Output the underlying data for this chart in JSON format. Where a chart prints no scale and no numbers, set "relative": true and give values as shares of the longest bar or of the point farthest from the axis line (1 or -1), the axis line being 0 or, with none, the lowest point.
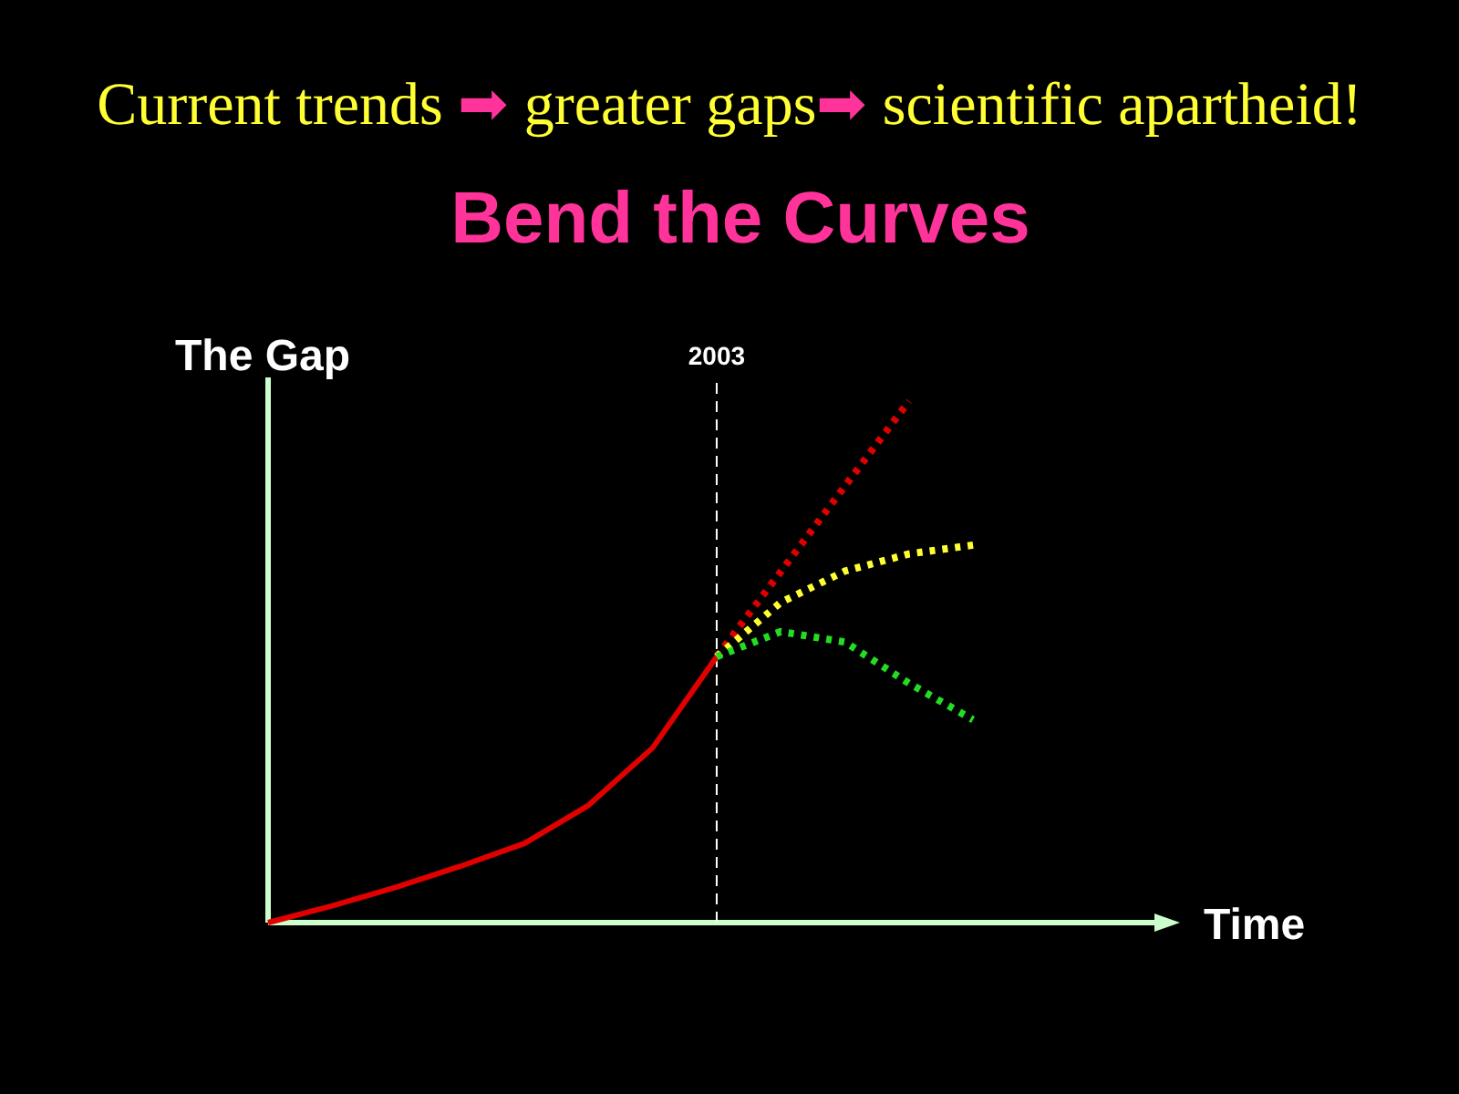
{
  "chart_data": {
    "type": "line",
    "title": "Bend the Curves",
    "subtitle": "Current trends ➡ greater gaps➡ scientific apartheid!",
    "xlabel": "Time",
    "ylabel": "The Gap",
    "relative": true,
    "categories": [
      null,
      null,
      null,
      null,
      null,
      null,
      null,
      null,
      null,
      null,
      null,
      null
    ],
    "series": [
      {
        "color": "#e00000",
        "line_style": "solid",
        "values": [
          0,
          0.032,
          0.068,
          0.108,
          0.152,
          0.225,
          0.335,
          0.51,
          null,
          null,
          null,
          null
        ]
      },
      {
        "color": "#e00000",
        "line_style": "dotted",
        "values": [
          null,
          null,
          null,
          null,
          null,
          null,
          null,
          0.51,
          0.673,
          0.837,
          1,
          null
        ]
      },
      {
        "color": "#ffff33",
        "line_style": "dotted",
        "values": [
          null,
          null,
          null,
          null,
          null,
          null,
          null,
          0.51,
          0.614,
          0.674,
          0.707,
          0.724
        ]
      },
      {
        "color": "#22dd22",
        "line_style": "dotted",
        "values": [
          null,
          null,
          null,
          null,
          null,
          null,
          null,
          0.51,
          0.558,
          0.538,
          0.459,
          0.389
        ]
      }
    ],
    "annotations": [
      "2003"
    ]
  }
}
